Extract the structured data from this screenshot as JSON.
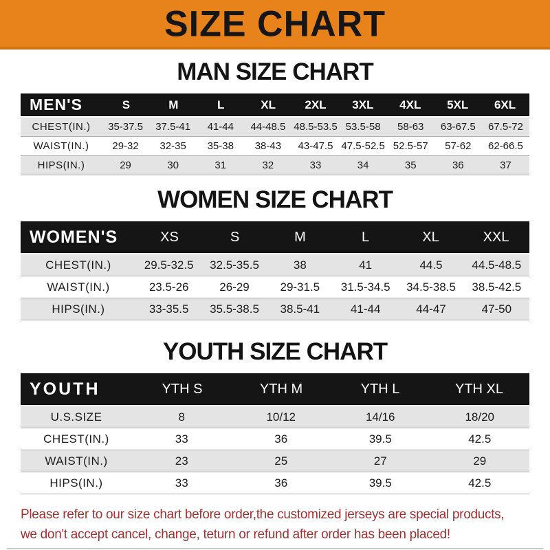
{
  "banner": {
    "title": "SIZE CHART",
    "bg_color": "#E8831C",
    "text_color": "#161616"
  },
  "colors": {
    "header_bar_bg": "#151515",
    "header_bar_text": "#ffffff",
    "row_gray": "#e4e4e5",
    "row_white": "#ffffff",
    "footer_red": "#A03232"
  },
  "sections": {
    "men": {
      "heading": "MAN SIZE CHART",
      "header_label": "MEN'S",
      "sizes": [
        "S",
        "M",
        "L",
        "XL",
        "2XL",
        "3XL",
        "4XL",
        "5XL",
        "6XL"
      ],
      "rows": [
        {
          "label": "CHEST(IN.)",
          "values": [
            "35-37.5",
            "37.5-41",
            "41-44",
            "44-48.5",
            "48.5-53.5",
            "53.5-58",
            "58-63",
            "63-67.5",
            "67.5-72"
          ]
        },
        {
          "label": "WAIST(IN.)",
          "values": [
            "29-32",
            "32-35",
            "35-38",
            "38-43",
            "43-47.5",
            "47.5-52.5",
            "52.5-57",
            "57-62",
            "62-66.5"
          ]
        },
        {
          "label": "HIPS(IN.)",
          "values": [
            "29",
            "30",
            "31",
            "32",
            "33",
            "34",
            "35",
            "36",
            "37"
          ]
        }
      ]
    },
    "women": {
      "heading": "WOMEN SIZE CHART",
      "header_label": "WOMEN'S",
      "sizes": [
        "XS",
        "S",
        "M",
        "L",
        "XL",
        "XXL"
      ],
      "rows": [
        {
          "label": "CHEST(IN.)",
          "values": [
            "29.5-32.5",
            "32.5-35.5",
            "38",
            "41",
            "44.5",
            "44.5-48.5"
          ]
        },
        {
          "label": "WAIST(IN.)",
          "values": [
            "23.5-26",
            "26-29",
            "29-31.5",
            "31.5-34.5",
            "34.5-38.5",
            "38.5-42.5"
          ]
        },
        {
          "label": "HIPS(IN.)",
          "values": [
            "33-35.5",
            "35.5-38.5",
            "38.5-41",
            "41-44",
            "44-47",
            "47-50"
          ]
        }
      ]
    },
    "youth": {
      "heading": "YOUTH SIZE CHART",
      "header_label": "YOUTH",
      "sizes": [
        "YTH S",
        "YTH M",
        "YTH L",
        "YTH XL"
      ],
      "rows": [
        {
          "label": "U.S.SIZE",
          "values": [
            "8",
            "10/12",
            "14/16",
            "18/20"
          ]
        },
        {
          "label": "CHEST(IN.)",
          "values": [
            "33",
            "36",
            "39.5",
            "42.5"
          ]
        },
        {
          "label": "WAIST(IN.)",
          "values": [
            "23",
            "25",
            "27",
            "29"
          ]
        },
        {
          "label": "HIPS(IN.)",
          "values": [
            "33",
            "36",
            "39.5",
            "42.5"
          ]
        }
      ]
    }
  },
  "footer": {
    "line1": "Please refer to our size chart before order,the customized jerseys are special products,",
    "line2": "we don't accept cancel, change, teturn or refund after order has been placed!"
  }
}
